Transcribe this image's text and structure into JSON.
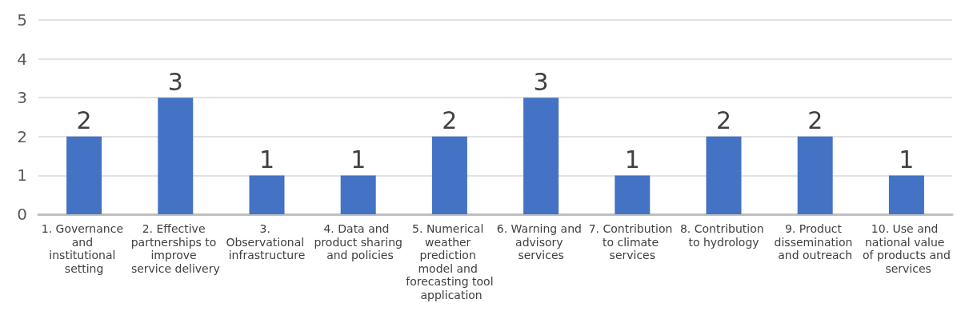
{
  "chart_data": {
    "type": "bar",
    "categories": [
      "1. Governance and institutional setting",
      "2. Effective partnerships to improve service delivery",
      "3. Observational infrastructure",
      "4. Data and product sharing and policies",
      "5. Numerical weather prediction model and forecasting tool application",
      "6. Warning and advisory services",
      "7. Contribution to climate services",
      "8. Contribution to hydrology",
      "9. Product dissemination and outreach",
      "10. Use and national value of products and services"
    ],
    "values": [
      2,
      3,
      1,
      1,
      2,
      3,
      1,
      2,
      2,
      1
    ],
    "color": "#4472c4",
    "ylim": [
      0,
      5
    ],
    "yticks": [
      0,
      1,
      2,
      3,
      4,
      5
    ],
    "grid": "y",
    "data_labels": true
  }
}
